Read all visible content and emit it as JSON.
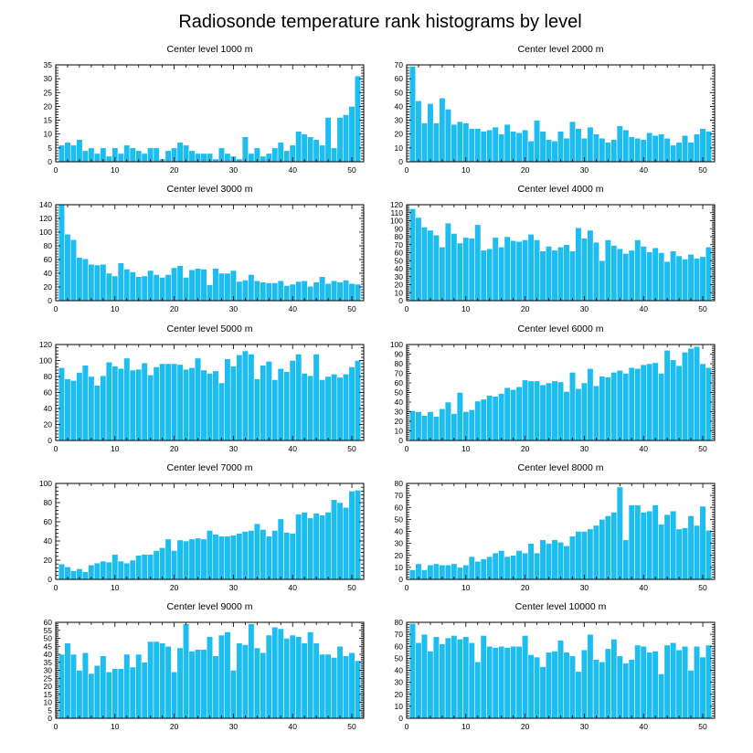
{
  "title": "Radiosonde temperature rank histograms by level",
  "chart_data": [
    {
      "type": "bar",
      "title": "Center level 1000 m",
      "ylim": [
        0,
        35
      ],
      "yticks": [
        0,
        5,
        10,
        15,
        20,
        25,
        30,
        35
      ],
      "xlim": [
        0,
        52
      ],
      "xticks": [
        0,
        10,
        20,
        30,
        40,
        50
      ],
      "x_start": 1,
      "values": [
        6,
        7,
        6,
        8,
        4,
        5,
        3,
        5,
        2,
        5,
        3,
        6,
        5,
        4,
        3,
        5,
        5,
        1,
        4,
        5,
        7,
        6,
        4,
        3,
        3,
        3,
        1,
        5,
        3,
        2,
        1,
        9,
        3,
        5,
        2,
        3,
        5,
        7,
        4,
        6,
        11,
        10,
        9,
        8,
        6,
        16,
        5,
        16,
        17,
        20,
        31
      ]
    },
    {
      "type": "bar",
      "title": "Center level 2000 m",
      "ylim": [
        0,
        70
      ],
      "yticks": [
        0,
        10,
        20,
        30,
        40,
        50,
        60,
        70
      ],
      "xlim": [
        0,
        52
      ],
      "xticks": [
        0,
        10,
        20,
        30,
        40,
        50
      ],
      "x_start": 1,
      "values": [
        69,
        44,
        28,
        42,
        28,
        46,
        38,
        27,
        29,
        28,
        24,
        24,
        22,
        23,
        25,
        20,
        27,
        22,
        21,
        23,
        15,
        30,
        22,
        16,
        15,
        22,
        17,
        29,
        24,
        17,
        25,
        20,
        17,
        14,
        16,
        26,
        23,
        18,
        17,
        16,
        21,
        19,
        20,
        17,
        12,
        14,
        19,
        14,
        20,
        24,
        22
      ]
    },
    {
      "type": "bar",
      "title": "Center level 3000 m",
      "ylim": [
        0,
        140
      ],
      "yticks": [
        0,
        20,
        40,
        60,
        80,
        100,
        120,
        140
      ],
      "xlim": [
        0,
        52
      ],
      "xticks": [
        0,
        10,
        20,
        30,
        40,
        50
      ],
      "x_start": 1,
      "values": [
        140,
        97,
        89,
        63,
        61,
        53,
        52,
        53,
        40,
        36,
        55,
        46,
        42,
        35,
        36,
        44,
        38,
        34,
        38,
        48,
        51,
        34,
        45,
        47,
        46,
        23,
        47,
        40,
        40,
        44,
        28,
        30,
        38,
        29,
        27,
        26,
        26,
        29,
        22,
        24,
        28,
        29,
        21,
        27,
        35,
        25,
        29,
        27,
        30,
        25,
        24
      ]
    },
    {
      "type": "bar",
      "title": "Center level 4000 m",
      "ylim": [
        0,
        120
      ],
      "yticks": [
        0,
        10,
        20,
        30,
        40,
        50,
        60,
        70,
        80,
        90,
        100,
        110,
        120
      ],
      "xlim": [
        0,
        52
      ],
      "xticks": [
        0,
        10,
        20,
        30,
        40,
        50
      ],
      "x_start": 1,
      "values": [
        115,
        104,
        92,
        88,
        82,
        67,
        97,
        84,
        72,
        79,
        78,
        95,
        63,
        65,
        79,
        67,
        80,
        75,
        74,
        76,
        83,
        76,
        62,
        68,
        63,
        67,
        70,
        62,
        91,
        78,
        88,
        73,
        50,
        76,
        69,
        65,
        59,
        63,
        76,
        68,
        61,
        66,
        60,
        49,
        62,
        56,
        52,
        58,
        53,
        55,
        67
      ]
    },
    {
      "type": "bar",
      "title": "Center level 5000 m",
      "ylim": [
        0,
        120
      ],
      "yticks": [
        0,
        20,
        40,
        60,
        80,
        100,
        120
      ],
      "xlim": [
        0,
        52
      ],
      "xticks": [
        0,
        10,
        20,
        30,
        40,
        50
      ],
      "x_start": 1,
      "values": [
        91,
        77,
        75,
        85,
        94,
        80,
        69,
        81,
        98,
        93,
        90,
        103,
        88,
        89,
        97,
        82,
        92,
        96,
        96,
        96,
        95,
        89,
        91,
        103,
        88,
        84,
        87,
        72,
        102,
        93,
        107,
        112,
        108,
        77,
        94,
        99,
        76,
        90,
        86,
        100,
        108,
        84,
        81,
        108,
        76,
        80,
        83,
        79,
        83,
        92,
        100
      ]
    },
    {
      "type": "bar",
      "title": "Center level 6000 m",
      "ylim": [
        0,
        100
      ],
      "yticks": [
        0,
        10,
        20,
        30,
        40,
        50,
        60,
        70,
        80,
        90,
        100
      ],
      "xlim": [
        0,
        52
      ],
      "xticks": [
        0,
        10,
        20,
        30,
        40,
        50
      ],
      "x_start": 1,
      "values": [
        31,
        30,
        26,
        30,
        25,
        33,
        40,
        28,
        50,
        30,
        32,
        41,
        43,
        47,
        46,
        49,
        55,
        53,
        56,
        63,
        62,
        62,
        58,
        60,
        62,
        61,
        51,
        71,
        54,
        60,
        75,
        57,
        67,
        66,
        71,
        73,
        70,
        76,
        75,
        79,
        80,
        81,
        70,
        94,
        84,
        78,
        92,
        96,
        98,
        80,
        76
      ]
    },
    {
      "type": "bar",
      "title": "Center level 7000 m",
      "ylim": [
        0,
        100
      ],
      "yticks": [
        0,
        20,
        40,
        60,
        80,
        100
      ],
      "xlim": [
        0,
        52
      ],
      "xticks": [
        0,
        10,
        20,
        30,
        40,
        50
      ],
      "x_start": 1,
      "values": [
        16,
        13,
        9,
        11,
        8,
        15,
        17,
        19,
        18,
        26,
        19,
        17,
        20,
        25,
        26,
        26,
        30,
        33,
        42,
        30,
        41,
        40,
        42,
        43,
        42,
        51,
        47,
        45,
        45,
        46,
        48,
        50,
        51,
        58,
        52,
        45,
        51,
        63,
        49,
        48,
        68,
        70,
        64,
        69,
        67,
        70,
        83,
        80,
        75,
        92,
        93
      ]
    },
    {
      "type": "bar",
      "title": "Center level 8000 m",
      "ylim": [
        0,
        80
      ],
      "yticks": [
        0,
        10,
        20,
        30,
        40,
        50,
        60,
        70,
        80
      ],
      "xlim": [
        0,
        52
      ],
      "xticks": [
        0,
        10,
        20,
        30,
        40,
        50
      ],
      "x_start": 1,
      "values": [
        8,
        13,
        8,
        12,
        13,
        12,
        12,
        13,
        10,
        12,
        19,
        15,
        17,
        19,
        22,
        24,
        19,
        20,
        24,
        22,
        30,
        22,
        33,
        30,
        33,
        31,
        28,
        36,
        40,
        40,
        42,
        45,
        50,
        53,
        56,
        77,
        33,
        62,
        62,
        56,
        57,
        62,
        46,
        54,
        57,
        42,
        43,
        53,
        45,
        61,
        41
      ]
    },
    {
      "type": "bar",
      "title": "Center level 9000 m",
      "ylim": [
        0,
        60
      ],
      "yticks": [
        0,
        5,
        10,
        15,
        20,
        25,
        30,
        35,
        40,
        45,
        50,
        55,
        60
      ],
      "xlim": [
        0,
        52
      ],
      "xticks": [
        0,
        10,
        20,
        30,
        40,
        50
      ],
      "x_start": 1,
      "values": [
        40,
        47,
        40,
        30,
        41,
        28,
        33,
        39,
        29,
        31,
        31,
        40,
        32,
        40,
        35,
        48,
        48,
        47,
        45,
        29,
        44,
        59,
        42,
        43,
        43,
        51,
        39,
        52,
        54,
        30,
        47,
        46,
        59,
        44,
        41,
        52,
        57,
        56,
        50,
        52,
        51,
        47,
        54,
        47,
        40,
        40,
        38,
        45,
        39,
        41,
        36
      ]
    },
    {
      "type": "bar",
      "title": "Center level 10000 m",
      "ylim": [
        0,
        80
      ],
      "yticks": [
        0,
        10,
        20,
        30,
        40,
        50,
        60,
        70,
        80
      ],
      "xlim": [
        0,
        52
      ],
      "xticks": [
        0,
        10,
        20,
        30,
        40,
        50
      ],
      "x_start": 1,
      "values": [
        79,
        63,
        70,
        56,
        68,
        62,
        67,
        69,
        66,
        68,
        63,
        47,
        69,
        60,
        59,
        60,
        59,
        60,
        60,
        69,
        53,
        51,
        43,
        55,
        56,
        65,
        55,
        52,
        39,
        57,
        70,
        49,
        47,
        58,
        66,
        52,
        46,
        49,
        61,
        60,
        55,
        56,
        37,
        61,
        63,
        57,
        60,
        40,
        60,
        51,
        61
      ]
    }
  ],
  "colors": {
    "bar": "#1ebdef",
    "axis": "#000000",
    "background": "#ffffff"
  }
}
